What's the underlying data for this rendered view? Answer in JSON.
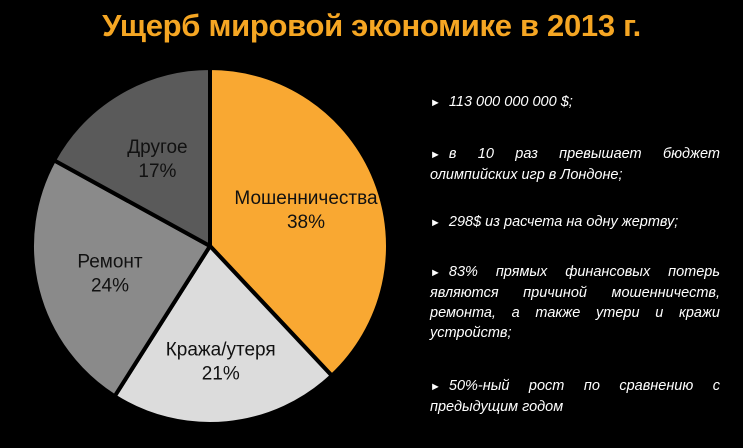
{
  "title": "Ущерб мировой экономике в 2013 г.",
  "colors": {
    "accent": "#f5a623",
    "background": "#000000",
    "separator": "#000000"
  },
  "chart_data": {
    "type": "pie",
    "title": "Ущерб мировой экономике в 2013 г.",
    "slices": [
      {
        "label": "Мошенничества",
        "value": 38,
        "display": "38%",
        "color": "#f9a832"
      },
      {
        "label": "Кража/утеря",
        "value": 21,
        "display": "21%",
        "color": "#dcdcdc"
      },
      {
        "label": "Ремонт",
        "value": 24,
        "display": "24%",
        "color": "#8a8a8a"
      },
      {
        "label": "Другое",
        "value": 17,
        "display": "17%",
        "color": "#5a5a5a"
      }
    ],
    "start_angle_deg": 0,
    "direction": "clockwise"
  },
  "bullets": [
    {
      "arrow": "►",
      "text": "113 000 000 000 $;"
    },
    {
      "arrow": "►",
      "text": "в 10 раз превышает бюджет олимпийских игр в Лондоне;"
    },
    {
      "arrow": "►",
      "text": "298$ из расчета на одну жертву;"
    },
    {
      "arrow": "►",
      "text": "83% прямых финансовых потерь являются причиной мошенничеств, ремонта, а также утери и кражи устройств;"
    },
    {
      "arrow": "►",
      "text": "50%-ный рост по сравнению с предыдущим годом"
    }
  ]
}
